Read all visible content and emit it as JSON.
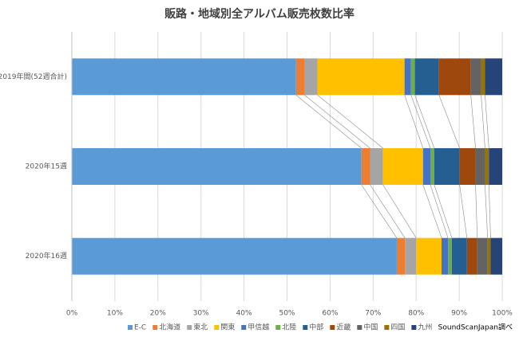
{
  "chart_data": {
    "type": "bar",
    "orientation": "horizontal",
    "stacked": true,
    "title": "販路・地域別全アルバム販売枚数比率",
    "source": "SoundScanJapan調べ",
    "categories": [
      "2019年間(52週合計)",
      "2020年15週",
      "2020年16週"
    ],
    "series": [
      {
        "name": "E-C",
        "color": "#5b9bd5",
        "values": [
          52.1,
          67.3,
          75.5
        ]
      },
      {
        "name": "北海道",
        "color": "#ed7d31",
        "values": [
          2.0,
          2.0,
          1.9
        ]
      },
      {
        "name": "東北",
        "color": "#a5a5a5",
        "values": [
          3.0,
          3.0,
          2.6
        ]
      },
      {
        "name": "関東",
        "color": "#ffc000",
        "values": [
          20.2,
          9.3,
          5.9
        ]
      },
      {
        "name": "甲信越",
        "color": "#4472c4",
        "values": [
          1.5,
          1.7,
          1.5
        ]
      },
      {
        "name": "北陸",
        "color": "#70ad47",
        "values": [
          0.9,
          0.9,
          0.9
        ]
      },
      {
        "name": "中部",
        "color": "#255e91",
        "values": [
          5.6,
          5.9,
          3.5
        ]
      },
      {
        "name": "近畿",
        "color": "#9e480e",
        "values": [
          7.4,
          3.7,
          2.4
        ]
      },
      {
        "name": "中国",
        "color": "#636363",
        "values": [
          2.4,
          2.2,
          2.4
        ]
      },
      {
        "name": "四国",
        "color": "#997300",
        "values": [
          0.9,
          0.9,
          0.7
        ]
      },
      {
        "name": "九州",
        "color": "#264478",
        "values": [
          4.0,
          3.1,
          2.7
        ]
      }
    ],
    "xlim": [
      0,
      100
    ],
    "xticks": [
      {
        "value": 0,
        "label": "0%"
      },
      {
        "value": 10,
        "label": "10%"
      },
      {
        "value": 20,
        "label": "20%"
      },
      {
        "value": 30,
        "label": "30%"
      },
      {
        "value": 40,
        "label": "40%"
      },
      {
        "value": 50,
        "label": "50%"
      },
      {
        "value": 60,
        "label": "60%"
      },
      {
        "value": 70,
        "label": "70%"
      },
      {
        "value": 80,
        "label": "80%"
      },
      {
        "value": 90,
        "label": "90%"
      },
      {
        "value": 100,
        "label": "100%"
      }
    ],
    "grid": true,
    "series_lines": true,
    "legend": "bottom"
  }
}
